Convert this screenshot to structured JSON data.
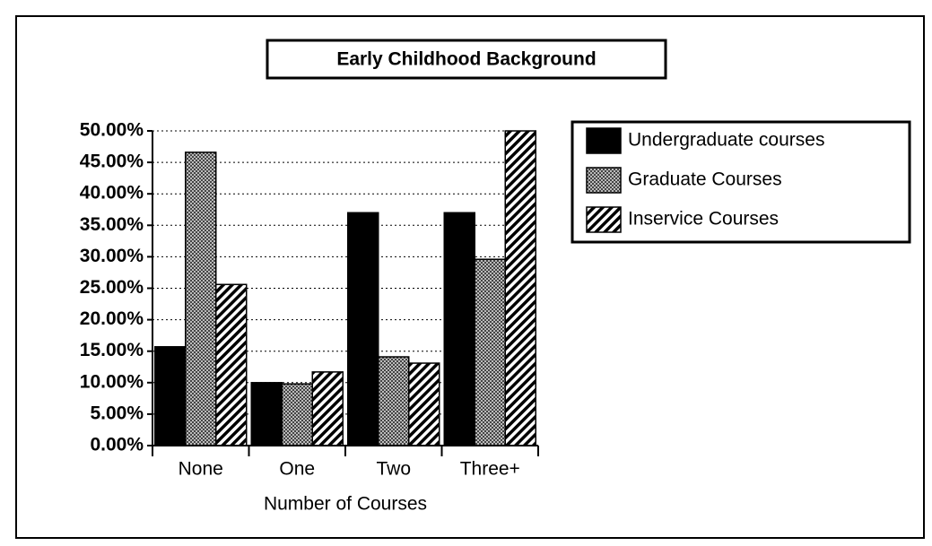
{
  "chart_data": {
    "type": "bar",
    "title": "Early Childhood Background",
    "x_label": "Number of Courses",
    "categories": [
      "None",
      "One",
      "Two",
      "Three+"
    ],
    "series": [
      {
        "name": "Undergraduate courses",
        "color": "#000000",
        "pattern": "solid",
        "values": [
          15.7,
          10.0,
          37.0,
          37.0
        ]
      },
      {
        "name": "Graduate Courses",
        "color": "#000000",
        "pattern": "dots",
        "values": [
          46.6,
          9.8,
          14.1,
          29.6
        ]
      },
      {
        "name": "Inservice Courses",
        "color": "#000000",
        "pattern": "diagonal",
        "values": [
          25.6,
          11.7,
          13.1,
          50.0
        ]
      }
    ],
    "ylim": [
      0,
      50
    ],
    "yticks": [
      {
        "value": 0,
        "label": "0.00%"
      },
      {
        "value": 5,
        "label": "5.00%"
      },
      {
        "value": 10,
        "label": "10.00%"
      },
      {
        "value": 15,
        "label": "15.00%"
      },
      {
        "value": 20,
        "label": "20.00%"
      },
      {
        "value": 25,
        "label": "25.00%"
      },
      {
        "value": 30,
        "label": "30.00%"
      },
      {
        "value": 35,
        "label": "35.00%"
      },
      {
        "value": 40,
        "label": "40.00%"
      },
      {
        "value": 45,
        "label": "45.00%"
      },
      {
        "value": 50,
        "label": "50.00%"
      }
    ],
    "grid": true,
    "legend": "right"
  }
}
